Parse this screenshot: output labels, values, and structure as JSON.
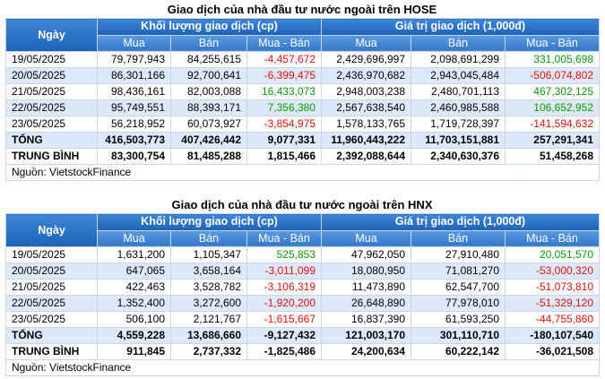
{
  "tables": [
    {
      "title": "Giao dịch của nhà đầu tư nước ngoài trên HOSE",
      "headers": {
        "date": "Ngày",
        "groups": [
          "Khối lượng giao dịch (cp)",
          "Giá trị giao dịch (1,000đ)"
        ],
        "columns": [
          "Mua",
          "Bán",
          "Mua - Bán",
          "Mua",
          "Bán",
          "Mua - Bán"
        ]
      },
      "rows": [
        [
          "19/05/2025",
          "79,797,943",
          "84,255,615",
          "-4,457,672",
          "2,429,696,997",
          "2,098,691,299",
          "331,005,698"
        ],
        [
          "20/05/2025",
          "86,301,166",
          "92,700,641",
          "-6,399,475",
          "2,436,970,682",
          "2,943,045,484",
          "-506,074,802"
        ],
        [
          "21/05/2025",
          "98,436,161",
          "82,003,088",
          "16,433,073",
          "2,948,003,238",
          "2,480,701,113",
          "467,302,125"
        ],
        [
          "22/05/2025",
          "95,749,551",
          "88,393,171",
          "7,356,380",
          "2,567,638,540",
          "2,460,985,588",
          "106,652,952"
        ],
        [
          "23/05/2025",
          "56,218,952",
          "60,073,927",
          "-3,854,975",
          "1,578,133,765",
          "1,719,728,397",
          "-141,594,632"
        ],
        [
          "TỔNG",
          "416,503,773",
          "407,426,442",
          "9,077,331",
          "11,960,443,222",
          "11,703,151,881",
          "257,291,341"
        ],
        [
          "TRUNG BÌNH",
          "83,300,754",
          "81,485,288",
          "1,815,466",
          "2,392,088,644",
          "2,340,630,376",
          "51,458,268"
        ]
      ],
      "source": "Nguồn: VietstockFinance"
    },
    {
      "title": "Giao dịch của nhà đầu tư nước ngoài trên HNX",
      "headers": {
        "date": "Ngày",
        "groups": [
          "Khối lượng giao dịch (cp)",
          "Giá trị giao dịch (1,000đ)"
        ],
        "columns": [
          "Mua",
          "Bán",
          "Mua - Bán",
          "Mua",
          "Bán",
          "Mua - Bán"
        ]
      },
      "rows": [
        [
          "19/05/2025",
          "1,631,200",
          "1,105,347",
          "525,853",
          "47,962,050",
          "27,910,480",
          "20,051,570"
        ],
        [
          "20/05/2025",
          "647,065",
          "3,658,164",
          "-3,011,099",
          "18,080,950",
          "71,081,270",
          "-53,000,320"
        ],
        [
          "21/05/2025",
          "422,463",
          "3,528,782",
          "-3,106,319",
          "11,473,890",
          "62,547,700",
          "-51,073,810"
        ],
        [
          "22/05/2025",
          "1,352,400",
          "3,272,600",
          "-1,920,200",
          "26,648,890",
          "77,978,010",
          "-51,329,120"
        ],
        [
          "23/05/2025",
          "506,100",
          "2,121,767",
          "-1,615,667",
          "16,837,390",
          "61,593,250",
          "-44,755,860"
        ],
        [
          "TỔNG",
          "4,559,228",
          "13,686,660",
          "-9,127,432",
          "121,003,170",
          "301,110,710",
          "-180,107,540"
        ],
        [
          "TRUNG BÌNH",
          "911,845",
          "2,737,332",
          "-1,825,486",
          "24,200,634",
          "60,222,142",
          "-36,021,508"
        ]
      ],
      "source": "Nguồn: VietstockFinance"
    }
  ]
}
